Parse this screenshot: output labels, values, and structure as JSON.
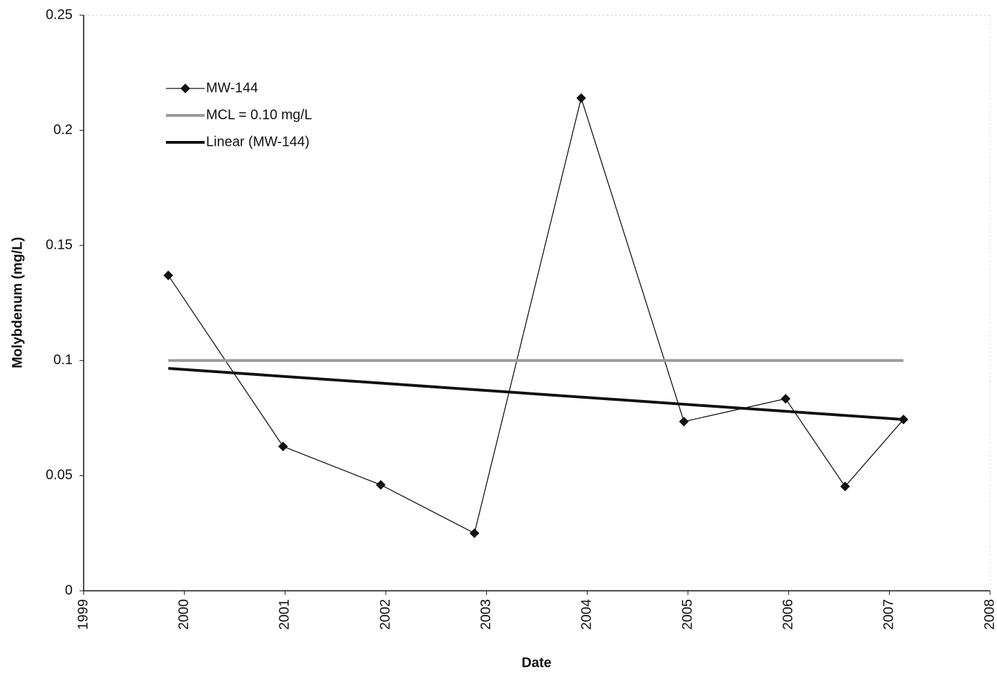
{
  "chart_data": {
    "type": "line",
    "x_label": "Date",
    "y_label": "Molybdenum (mg/L)",
    "xlim": [
      1999,
      2008
    ],
    "xticks": [
      1999,
      2000,
      2001,
      2002,
      2003,
      2004,
      2005,
      2006,
      2007,
      2008
    ],
    "ylim": [
      0,
      0.25
    ],
    "yticks": [
      0,
      0.05,
      0.1,
      0.15,
      0.2,
      0.25
    ],
    "grid": false,
    "legend": "upper left",
    "series": [
      {
        "name": "MW-144",
        "color": "#111111",
        "marker": "diamond",
        "x": [
          1999.84,
          2000.98,
          2001.95,
          2002.88,
          2003.94,
          2004.96,
          2005.97,
          2006.56,
          2007.14
        ],
        "values": [
          0.137,
          0.0627,
          0.046,
          0.025,
          0.214,
          0.0735,
          0.0834,
          0.0453,
          0.0744
        ]
      },
      {
        "name": "MCL = 0.10 mg/L",
        "color": "#9a9a9a",
        "x": [
          1999.84,
          2007.14
        ],
        "values": [
          0.1,
          0.1
        ]
      },
      {
        "name": "Linear (MW-144)",
        "color": "#111111",
        "x": [
          1999.84,
          2007.14
        ],
        "values": [
          0.0966,
          0.0744
        ]
      }
    ]
  }
}
